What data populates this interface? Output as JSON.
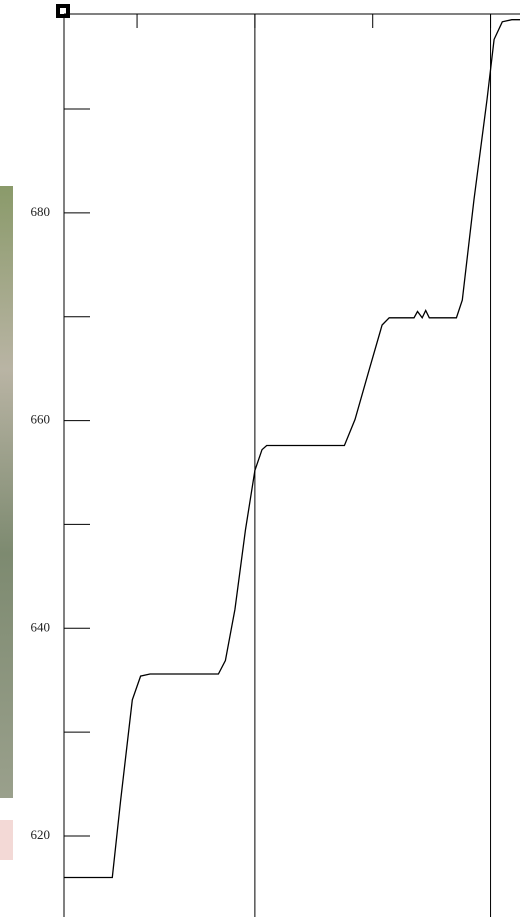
{
  "chart_data": {
    "type": "line",
    "x": [
      0.38,
      0.79,
      0.86,
      0.96,
      1.03,
      1.11,
      1.69,
      1.75,
      1.83,
      1.92,
      2.0,
      2.06,
      2.1,
      2.76,
      2.85,
      2.97,
      3.08,
      3.14,
      3.35,
      3.38,
      3.42,
      3.45,
      3.48,
      3.71,
      3.76,
      3.86,
      3.97,
      4.03,
      4.1,
      4.18,
      4.25
    ],
    "series": [
      {
        "color": "#000000",
        "values": [
          616.0,
          616.0,
          623.4,
          633.1,
          635.4,
          635.6,
          635.6,
          636.9,
          641.8,
          649.5,
          655.2,
          657.2,
          657.6,
          657.6,
          660.1,
          664.9,
          669.2,
          669.9,
          669.9,
          670.5,
          669.9,
          670.6,
          669.9,
          669.9,
          671.6,
          681.3,
          690.9,
          696.7,
          698.4,
          698.6,
          698.6
        ]
      }
    ],
    "xlim": [
      0.38,
      4.25
    ],
    "xticks": [
      1,
      2,
      3,
      4
    ],
    "xgrid": [
      2,
      4
    ],
    "ylim": [
      612.2,
      699.15
    ],
    "yticks": [
      620,
      640,
      660,
      680
    ],
    "minor_yticks": [
      630,
      650,
      670,
      690
    ]
  }
}
